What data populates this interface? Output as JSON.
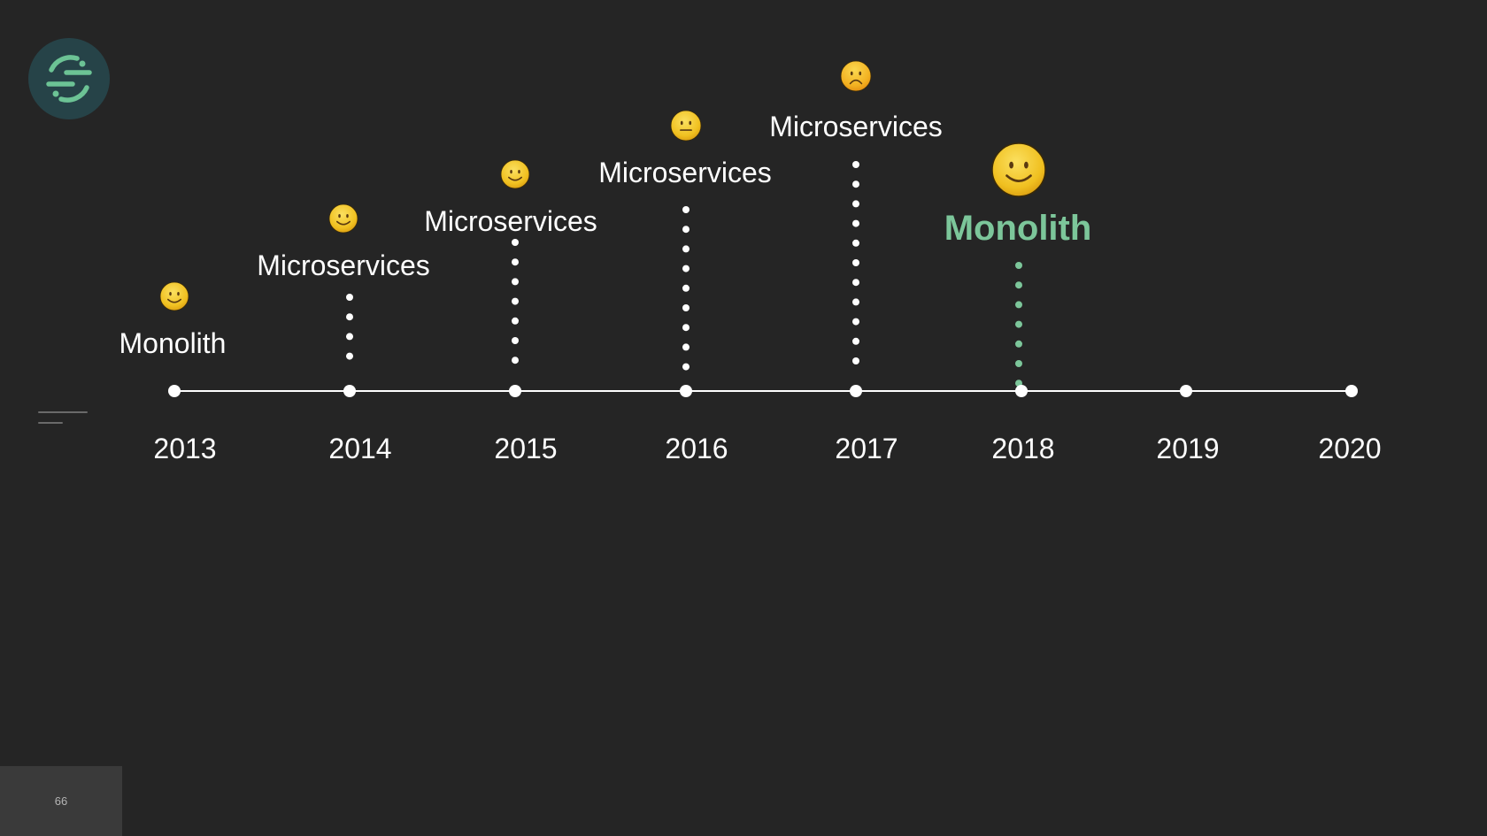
{
  "logo": {
    "icon": "segment-logo-icon",
    "bg_color": "#264348",
    "mark_color": "#6cc395"
  },
  "page_number": "66",
  "colors": {
    "background": "#252525",
    "line": "#ffffff",
    "highlight": "#7cc69a"
  },
  "timeline": {
    "years": [
      "2013",
      "2014",
      "2015",
      "2016",
      "2017",
      "2018",
      "2019",
      "2020"
    ],
    "events": [
      {
        "year": "2013",
        "label": "Monolith",
        "mood": "smile",
        "dots": 0,
        "highlight": false
      },
      {
        "year": "2014",
        "label": "Microservices",
        "mood": "smile",
        "dots": 4,
        "highlight": false
      },
      {
        "year": "2015",
        "label": "Microservices",
        "mood": "smile",
        "dots": 7,
        "highlight": false
      },
      {
        "year": "2016",
        "label": "Microservices",
        "mood": "neutral",
        "dots": 9,
        "highlight": false
      },
      {
        "year": "2017",
        "label": "Microservices",
        "mood": "frown",
        "dots": 11,
        "highlight": false
      },
      {
        "year": "2018",
        "label": "Monolith",
        "mood": "big-smile",
        "dots": 7,
        "highlight": true
      }
    ]
  }
}
